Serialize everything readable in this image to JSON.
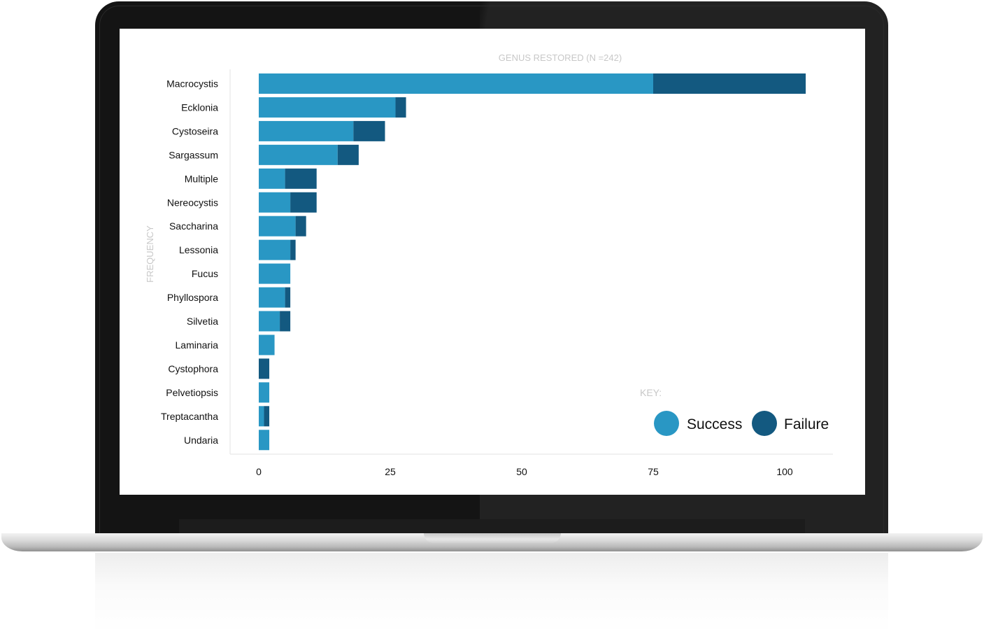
{
  "chart_data": {
    "type": "bar",
    "orientation": "horizontal",
    "stacked": true,
    "title": "GENUS RESTORED (N =242)",
    "ylabel": "FREQUENCY",
    "xlabel": "",
    "xlim": [
      0,
      110
    ],
    "xticks": [
      0,
      25,
      50,
      75,
      100
    ],
    "grid": false,
    "categories": [
      "Macrocystis",
      "Ecklonia",
      "Cystoseira",
      "Sargassum",
      "Multiple",
      "Nereocystis",
      "Saccharina",
      "Lessonia",
      "Fucus",
      "Phyllospora",
      "Silvetia",
      "Laminaria",
      "Cystophora",
      "Pelvetiopsis",
      "Treptacantha",
      "Undaria"
    ],
    "series": [
      {
        "name": "Success",
        "color": "#2997c4",
        "values": [
          75,
          26,
          18,
          15,
          5,
          6,
          7,
          6,
          6,
          5,
          4,
          3,
          0,
          2,
          1,
          2
        ]
      },
      {
        "name": "Failure",
        "color": "#135980",
        "values": [
          29,
          2,
          6,
          4,
          6,
          5,
          2,
          1,
          0,
          1,
          2,
          0,
          2,
          0,
          1,
          0
        ]
      }
    ],
    "legend": {
      "title": "KEY:",
      "placement": "bottom-right",
      "items": [
        "Success",
        "Failure"
      ]
    }
  }
}
